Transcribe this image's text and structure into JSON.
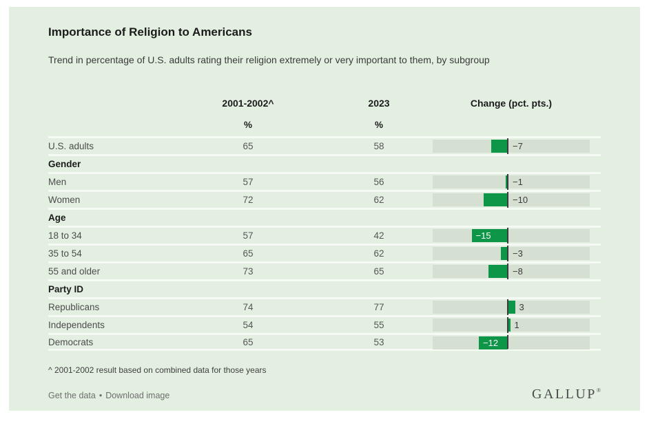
{
  "header": {
    "title": "Importance of Religion to Americans",
    "subtitle": "Trend in percentage of U.S. adults rating their religion extremely or very important to them, by subgroup"
  },
  "table": {
    "columns": {
      "col1": "2001-2002^",
      "col2": "2023",
      "col3": "Change (pct. pts.)"
    },
    "unit_row": {
      "col1": "%",
      "col2": "%"
    },
    "rows": [
      {
        "type": "data",
        "label": "U.S. adults",
        "v2001": "65",
        "v2023": "58",
        "change": -7,
        "change_label": "−7",
        "label_inside": false
      },
      {
        "type": "section",
        "label": "Gender"
      },
      {
        "type": "data",
        "label": "Men",
        "v2001": "57",
        "v2023": "56",
        "change": -1,
        "change_label": "−1",
        "label_inside": false
      },
      {
        "type": "data",
        "label": "Women",
        "v2001": "72",
        "v2023": "62",
        "change": -10,
        "change_label": "−10",
        "label_inside": false
      },
      {
        "type": "section",
        "label": "Age"
      },
      {
        "type": "data",
        "label": "18 to 34",
        "v2001": "57",
        "v2023": "42",
        "change": -15,
        "change_label": "−15",
        "label_inside": true
      },
      {
        "type": "data",
        "label": "35 to 54",
        "v2001": "65",
        "v2023": "62",
        "change": -3,
        "change_label": "−3",
        "label_inside": false
      },
      {
        "type": "data",
        "label": "55 and older",
        "v2001": "73",
        "v2023": "65",
        "change": -8,
        "change_label": "−8",
        "label_inside": false
      },
      {
        "type": "section",
        "label": "Party ID"
      },
      {
        "type": "data",
        "label": "Republicans",
        "v2001": "74",
        "v2023": "77",
        "change": 3,
        "change_label": "3",
        "label_inside": false
      },
      {
        "type": "data",
        "label": "Independents",
        "v2001": "54",
        "v2023": "55",
        "change": 1,
        "change_label": "1",
        "label_inside": false
      },
      {
        "type": "data",
        "label": "Democrats",
        "v2001": "65",
        "v2023": "53",
        "change": -12,
        "change_label": "−12",
        "label_inside": true
      }
    ]
  },
  "footnote": "^ 2001-2002 result based on combined data for those years",
  "footer": {
    "get_data_label": "Get the data",
    "separator": "•",
    "download_label": "Download image",
    "logo": "GALLUP",
    "logo_mark": "®"
  },
  "colors": {
    "card_bg": "#e3f0e1",
    "bar_green": "#0e9648",
    "bar_track": "#d6e0d2",
    "zero_line": "#3c3c3c",
    "separator": "#f6faf4"
  },
  "chart_data": {
    "type": "bar",
    "title": "Importance of Religion to Americans",
    "subtitle": "Trend in percentage of U.S. adults rating their religion extremely or very important to them, by subgroup",
    "categories": [
      "U.S. adults",
      "Men",
      "Women",
      "18 to 34",
      "35 to 54",
      "55 and older",
      "Republicans",
      "Independents",
      "Democrats"
    ],
    "group_labels": [
      "Gender",
      "Age",
      "Party ID"
    ],
    "groups": {
      "Gender": [
        "Men",
        "Women"
      ],
      "Age": [
        "18 to 34",
        "35 to 54",
        "55 and older"
      ],
      "Party ID": [
        "Republicans",
        "Independents",
        "Democrats"
      ]
    },
    "series": [
      {
        "name": "2001-2002^",
        "unit": "%",
        "values": [
          65,
          57,
          72,
          57,
          65,
          73,
          74,
          54,
          65
        ]
      },
      {
        "name": "2023",
        "unit": "%",
        "values": [
          58,
          56,
          62,
          42,
          62,
          65,
          77,
          55,
          53
        ]
      },
      {
        "name": "Change (pct. pts.)",
        "values": [
          -7,
          -1,
          -10,
          -15,
          -3,
          -8,
          3,
          1,
          -12
        ]
      }
    ],
    "change_axis": {
      "xlim": [
        -31,
        34
      ],
      "zero_line": true,
      "grid": false
    },
    "legend_position": "none",
    "footnote": "^ 2001-2002 result based on combined data for those years"
  }
}
